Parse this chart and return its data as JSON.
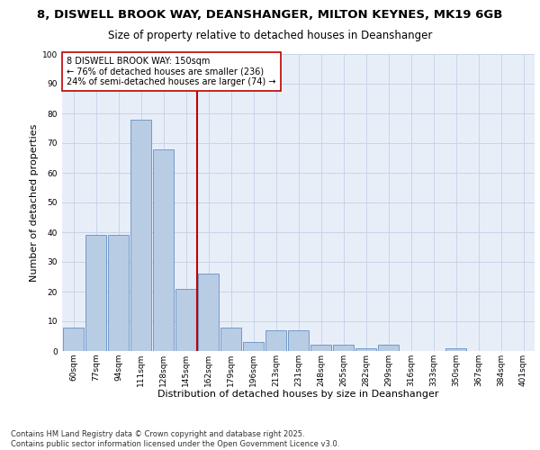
{
  "title_line1": "8, DISWELL BROOK WAY, DEANSHANGER, MILTON KEYNES, MK19 6GB",
  "title_line2": "Size of property relative to detached houses in Deanshanger",
  "xlabel": "Distribution of detached houses by size in Deanshanger",
  "ylabel": "Number of detached properties",
  "categories": [
    "60sqm",
    "77sqm",
    "94sqm",
    "111sqm",
    "128sqm",
    "145sqm",
    "162sqm",
    "179sqm",
    "196sqm",
    "213sqm",
    "231sqm",
    "248sqm",
    "265sqm",
    "282sqm",
    "299sqm",
    "316sqm",
    "333sqm",
    "350sqm",
    "367sqm",
    "384sqm",
    "401sqm"
  ],
  "values": [
    8,
    39,
    39,
    78,
    68,
    21,
    26,
    8,
    3,
    7,
    7,
    2,
    2,
    1,
    2,
    0,
    0,
    1,
    0,
    0,
    0
  ],
  "bar_color": "#b8cce4",
  "bar_edge_color": "#4f81bd",
  "annotation_box_text": "8 DISWELL BROOK WAY: 150sqm\n← 76% of detached houses are smaller (236)\n24% of semi-detached houses are larger (74) →",
  "vline_color": "#c00000",
  "vline_position": 5.5,
  "ylim": [
    0,
    100
  ],
  "yticks": [
    0,
    10,
    20,
    30,
    40,
    50,
    60,
    70,
    80,
    90,
    100
  ],
  "grid_color": "#c8d4e8",
  "bg_color": "#e8eef8",
  "footer_text": "Contains HM Land Registry data © Crown copyright and database right 2025.\nContains public sector information licensed under the Open Government Licence v3.0.",
  "title_fontsize": 9.5,
  "subtitle_fontsize": 8.5,
  "axis_label_fontsize": 8,
  "tick_fontsize": 6.5,
  "annotation_fontsize": 7,
  "footer_fontsize": 6
}
